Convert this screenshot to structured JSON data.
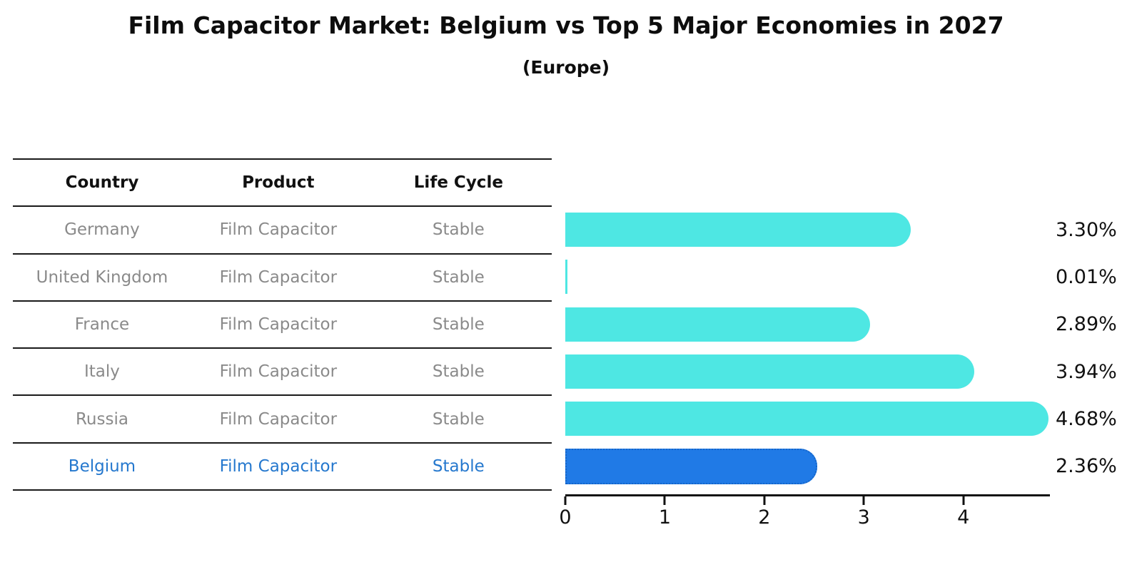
{
  "title": "Film Capacitor Market: Belgium vs Top 5 Major Economies in 2027",
  "subtitle": "(Europe)",
  "table": {
    "headers": {
      "country": "Country",
      "product": "Product",
      "life_cycle": "Life Cycle"
    },
    "rows": [
      {
        "country": "Germany",
        "product": "Film Capacitor",
        "life_cycle": "Stable",
        "highlight": false
      },
      {
        "country": "United Kingdom",
        "product": "Film Capacitor",
        "life_cycle": "Stable",
        "highlight": false
      },
      {
        "country": "France",
        "product": "Film Capacitor",
        "life_cycle": "Stable",
        "highlight": false
      },
      {
        "country": "Italy",
        "product": "Film Capacitor",
        "life_cycle": "Stable",
        "highlight": false
      },
      {
        "country": "Russia",
        "product": "Film Capacitor",
        "life_cycle": "Stable",
        "highlight": false
      },
      {
        "country": "Belgium",
        "product": "Film Capacitor",
        "life_cycle": "Stable",
        "highlight": true
      }
    ]
  },
  "chart_data": {
    "type": "bar",
    "orientation": "horizontal",
    "title": "Film Capacitor Market: Belgium vs Top 5 Major Economies in 2027 (Europe)",
    "categories": [
      "Germany",
      "United Kingdom",
      "France",
      "Italy",
      "Russia",
      "Belgium"
    ],
    "values": [
      3.3,
      0.01,
      2.89,
      3.94,
      4.68,
      2.36
    ],
    "value_labels": [
      "3.30%",
      "0.01%",
      "2.89%",
      "3.94%",
      "4.68%",
      "2.36%"
    ],
    "highlight_index": 5,
    "xlabel": "",
    "ylabel": "",
    "xticks": [
      0,
      1,
      2,
      3,
      4
    ],
    "xtick_labels": [
      "0",
      "1",
      "2",
      "3",
      "4"
    ],
    "xlim": [
      0,
      4.87
    ],
    "grid": false,
    "legend": "none",
    "bar_color": "#4ee7e3",
    "highlight_bar_color": "#207ae6",
    "highlight_text_color": "#2578ce",
    "text_color": "#8a8a8a"
  }
}
